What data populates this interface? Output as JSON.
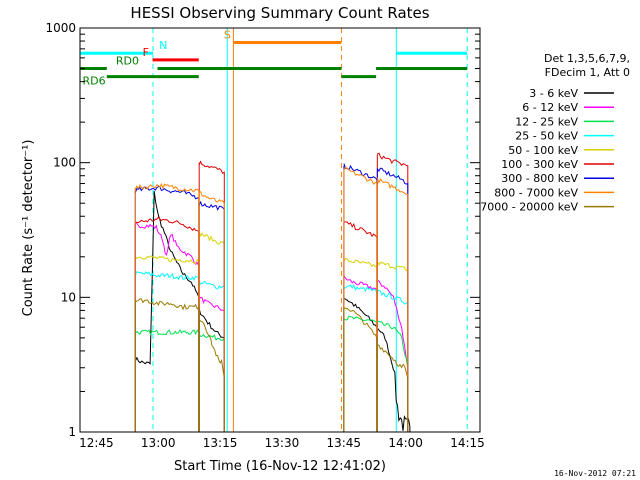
{
  "chart_data": {
    "type": "line",
    "title": "HESSI Observing Summary Count Rates",
    "xlabel": "Start Time (16-Nov-12 12:41:02)",
    "ylabel": "Count Rate (s⁻¹ detector⁻¹)",
    "x_unit": "minutes after 12:41:02",
    "xlim": [
      0,
      97
    ],
    "ylim": [
      1,
      1000
    ],
    "y_scale": "log",
    "x_tick_labels": [
      "12:45",
      "13:00",
      "13:15",
      "13:30",
      "13:45",
      "14:00",
      "14:15"
    ],
    "x_tick_values": [
      3.97,
      18.97,
      33.97,
      48.97,
      63.97,
      78.97,
      93.97
    ],
    "y_tick_labels": [
      "1",
      "10",
      "100",
      "1000"
    ],
    "y_tick_values": [
      1,
      10,
      100,
      1000
    ],
    "stamp": "16-Nov-2012 07:21",
    "legend": {
      "header": [
        "Det 1,3,5,6,7,9,",
        "FDecim 1, Att 0"
      ],
      "position": "right",
      "entries": [
        {
          "label": "3 - 6 keV",
          "color": "#000000"
        },
        {
          "label": "6 - 12 keV",
          "color": "#ff00ff"
        },
        {
          "label": "12 - 25 keV",
          "color": "#00e050"
        },
        {
          "label": "25 - 50 keV",
          "color": "#00ffff"
        },
        {
          "label": "50 - 100 keV",
          "color": "#d8d000"
        },
        {
          "label": "100 - 300 keV",
          "color": "#e00000"
        },
        {
          "label": "300 - 800 keV",
          "color": "#0000e0"
        },
        {
          "label": "800 - 7000 keV",
          "color": "#ff8000"
        },
        {
          "label": "7000 - 20000 keV",
          "color": "#9b7a00"
        }
      ]
    },
    "flags": [
      {
        "label": "N",
        "color": "#00ffff",
        "y": 650,
        "segments": [
          [
            0,
            17.7
          ],
          [
            76.7,
            93.9
          ]
        ],
        "labels": [
          {
            "x": 19.2,
            "text": "N"
          }
        ]
      },
      {
        "label": "S",
        "color": "#ff8000",
        "y": 780,
        "segments": [
          [
            37.2,
            63.4
          ]
        ],
        "labels": [
          {
            "x": 34.9,
            "text": "S"
          }
        ]
      },
      {
        "label": "F",
        "color": "#ff0000",
        "y": 580,
        "segments": [
          [
            17.6,
            28.8
          ]
        ],
        "labels": [
          {
            "x": 15.2,
            "text": "F"
          }
        ]
      },
      {
        "label": "RD0",
        "color": "#008000",
        "y": 500,
        "segments": [
          [
            0,
            6.5
          ],
          [
            18.8,
            34.9
          ],
          [
            34.9,
            63.4
          ],
          [
            71.8,
            93.9
          ]
        ],
        "labels": [
          {
            "x": 8.7,
            "text": "RD0"
          }
        ]
      },
      {
        "label": "RD6",
        "color": "#008000",
        "y": 435,
        "segments": [
          [
            6.5,
            28.8
          ],
          [
            63.4,
            71.8
          ]
        ],
        "labels": [
          {
            "x": 0.6,
            "text": "RD6"
          }
        ]
      }
    ],
    "vlines": [
      {
        "x": 0.0,
        "color": "#00ffff",
        "style": "solid"
      },
      {
        "x": 17.7,
        "color": "#00ffff",
        "style": "dashed"
      },
      {
        "x": 35.7,
        "color": "#00ffff",
        "style": "solid"
      },
      {
        "x": 37.2,
        "color": "#ff8000",
        "style": "solid"
      },
      {
        "x": 63.4,
        "color": "#ff8000",
        "style": "dashed"
      },
      {
        "x": 76.7,
        "color": "#00ffff",
        "style": "solid"
      },
      {
        "x": 93.9,
        "color": "#00ffff",
        "style": "dashed"
      }
    ],
    "segments": [
      {
        "x": [
          13.4,
          28.8
        ],
        "y": [
          60,
          62
        ]
      },
      {
        "x": [
          28.8,
          35.0
        ],
        "y": [
          60,
          62
        ]
      },
      {
        "x": [
          64.0,
          72.0
        ],
        "y": [
          60,
          62
        ]
      },
      {
        "x": [
          72.0,
          79.5
        ],
        "y": [
          60,
          62
        ]
      }
    ],
    "series": [
      {
        "name": "3 - 6 keV",
        "color": "#000000",
        "orbits": [
          {
            "x": [
              13.4,
              15.0,
              17.0,
              18.0,
              19.0,
              20.5,
              22.0,
              23.5,
              25.0,
              27.0,
              28.8
            ],
            "y": [
              3.5,
              3.3,
              3.2,
              60,
              40,
              30,
              22,
              18,
              15,
              13,
              10
            ]
          },
          {
            "x": [
              28.9,
              31.0,
              33.0,
              35.0
            ],
            "y": [
              8,
              6.5,
              5.5,
              5
            ]
          },
          {
            "x": [
              64.0,
              66.0,
              68.0,
              70.0,
              72.0
            ],
            "y": [
              10,
              9,
              8,
              7,
              6
            ]
          },
          {
            "x": [
              72.1,
              74.0,
              76.0,
              77.0,
              78.0,
              79.0,
              80.0
            ],
            "y": [
              6,
              5,
              3,
              1.5,
              1.2,
              1.1,
              1.1
            ]
          }
        ]
      },
      {
        "name": "6 - 12 keV",
        "color": "#ff00ff",
        "orbits": [
          {
            "x": [
              13.4,
              15.0,
              17.0,
              18.5,
              20.0,
              21.0,
              22.0,
              23.5,
              25.0,
              27.0,
              28.8
            ],
            "y": [
              35,
              34,
              34,
              33,
              27,
              20,
              30,
              24,
              22,
              20,
              17
            ]
          },
          {
            "x": [
              28.9,
              31.0,
              33.0,
              35.0
            ],
            "y": [
              10,
              9,
              8.5,
              8
            ]
          },
          {
            "x": [
              64.0,
              66.0,
              68.0,
              70.0,
              72.0
            ],
            "y": [
              14,
              13,
              12.5,
              12,
              11.5
            ]
          },
          {
            "x": [
              72.1,
              74.0,
              76.0,
              78.0,
              79.5
            ],
            "y": [
              13,
              12,
              10,
              6,
              3
            ]
          }
        ]
      },
      {
        "name": "12 - 25 keV",
        "color": "#00e050",
        "orbits": [
          {
            "x": [
              13.4,
              16.0,
              19.0,
              22.0,
              25.0,
              28.8
            ],
            "y": [
              5.5,
              5.5,
              5.5,
              5.5,
              5.5,
              5.5
            ]
          },
          {
            "x": [
              28.9,
              31.0,
              33.0,
              35.0
            ],
            "y": [
              5.3,
              5.2,
              5.0,
              5.0
            ]
          },
          {
            "x": [
              64.0,
              66.0,
              68.0,
              70.0,
              72.0
            ],
            "y": [
              7,
              7,
              6.8,
              6.8,
              6.5
            ]
          },
          {
            "x": [
              72.1,
              74.0,
              76.0,
              78.0,
              79.5
            ],
            "y": [
              6.5,
              6.2,
              6,
              5,
              3
            ]
          }
        ]
      },
      {
        "name": "25 - 50 keV",
        "color": "#00ffff",
        "orbits": [
          {
            "x": [
              13.4,
              16.0,
              19.0,
              22.0,
              25.0,
              28.8
            ],
            "y": [
              15,
              15,
              14.5,
              14.5,
              14,
              14
            ]
          },
          {
            "x": [
              28.9,
              31.0,
              33.0,
              35.0
            ],
            "y": [
              13,
              12.5,
              12,
              12
            ]
          },
          {
            "x": [
              64.0,
              66.0,
              68.0,
              70.0,
              72.0
            ],
            "y": [
              12,
              12,
              11.5,
              11.5,
              11
            ]
          },
          {
            "x": [
              72.1,
              74.0,
              76.0,
              78.0,
              79.5
            ],
            "y": [
              11,
              10.5,
              10,
              9.5,
              9
            ]
          }
        ]
      },
      {
        "name": "50 - 100 keV",
        "color": "#d8d000",
        "orbits": [
          {
            "x": [
              13.4,
              16.0,
              19.0,
              22.0,
              25.0,
              28.8
            ],
            "y": [
              20,
              20,
              19.5,
              19,
              19,
              18.5
            ]
          },
          {
            "x": [
              28.9,
              31.0,
              33.0,
              35.0
            ],
            "y": [
              30,
              28,
              26,
              25
            ]
          },
          {
            "x": [
              64.0,
              66.0,
              68.0,
              70.0,
              72.0
            ],
            "y": [
              19,
              18.5,
              18,
              17.5,
              17
            ]
          },
          {
            "x": [
              72.1,
              74.0,
              76.0,
              78.0,
              79.5
            ],
            "y": [
              18,
              17.5,
              17,
              16.5,
              16
            ]
          }
        ]
      },
      {
        "name": "100 - 300 keV",
        "color": "#e00000",
        "orbits": [
          {
            "x": [
              13.4,
              16.0,
              19.0,
              22.0,
              25.0,
              28.8
            ],
            "y": [
              36,
              37,
              38,
              37,
              35,
              31
            ]
          },
          {
            "x": [
              28.9,
              31.0,
              33.0,
              35.0
            ],
            "y": [
              100,
              95,
              90,
              85
            ]
          },
          {
            "x": [
              64.0,
              66.0,
              68.0,
              70.0,
              72.0
            ],
            "y": [
              36,
              34,
              32,
              30,
              28
            ]
          },
          {
            "x": [
              72.1,
              74.0,
              76.0,
              78.0,
              79.5
            ],
            "y": [
              115,
              108,
              102,
              98,
              95
            ]
          }
        ]
      },
      {
        "name": "300 - 800 keV",
        "color": "#0000e0",
        "orbits": [
          {
            "x": [
              13.4,
              16.0,
              19.0,
              22.0,
              25.0,
              28.8
            ],
            "y": [
              62,
              64,
              65,
              62,
              60,
              55
            ]
          },
          {
            "x": [
              28.9,
              31.0,
              33.0,
              35.0
            ],
            "y": [
              50,
              48,
              47,
              45
            ]
          },
          {
            "x": [
              64.0,
              66.0,
              68.0,
              70.0,
              72.0
            ],
            "y": [
              95,
              90,
              85,
              80,
              75
            ]
          },
          {
            "x": [
              72.1,
              74.0,
              76.0,
              78.0,
              79.5
            ],
            "y": [
              90,
              85,
              80,
              75,
              70
            ]
          }
        ]
      },
      {
        "name": "800 - 7000 keV",
        "color": "#ff8000",
        "orbits": [
          {
            "x": [
              13.4,
              16.0,
              19.0,
              22.0,
              25.0,
              28.8
            ],
            "y": [
              65,
              66,
              68,
              66,
              64,
              62
            ]
          },
          {
            "x": [
              28.9,
              31.0,
              33.0,
              35.0
            ],
            "y": [
              60,
              55,
              52,
              50
            ]
          },
          {
            "x": [
              64.0,
              66.0,
              68.0,
              70.0,
              72.0
            ],
            "y": [
              90,
              85,
              80,
              75,
              70
            ]
          },
          {
            "x": [
              72.1,
              74.0,
              76.0,
              78.0,
              79.5
            ],
            "y": [
              75,
              70,
              66,
              62,
              58
            ]
          }
        ]
      },
      {
        "name": "7000 - 20000 keV",
        "color": "#9b7a00",
        "orbits": [
          {
            "x": [
              13.4,
              16.0,
              19.0,
              22.0,
              25.0,
              28.8
            ],
            "y": [
              9.5,
              9.5,
              9,
              9,
              8.5,
              8.5
            ]
          },
          {
            "x": [
              28.9,
              30.0,
              31.0,
              32.0,
              33.0,
              34.0,
              35.0
            ],
            "y": [
              7,
              6.5,
              5.5,
              4.5,
              3.8,
              3.2,
              2.5
            ]
          },
          {
            "x": [
              64.0,
              66.0,
              68.0,
              70.0,
              72.0
            ],
            "y": [
              8.5,
              8,
              7,
              6,
              5
            ]
          },
          {
            "x": [
              72.1,
              74.0,
              76.0,
              78.0,
              79.5
            ],
            "y": [
              4.5,
              4,
              3.5,
              3,
              2.5
            ]
          }
        ]
      }
    ]
  }
}
